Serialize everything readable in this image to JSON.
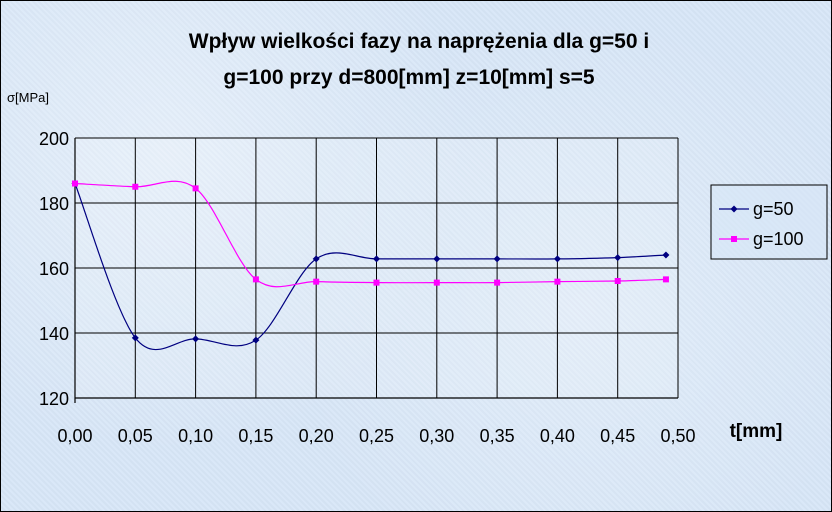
{
  "chart_data": {
    "type": "line",
    "title_lines": [
      "Wpływ wielkości fazy na naprężenia dla g=50 i",
      "g=100 przy d=800[mm] z=10[mm] s=5"
    ],
    "xlabel": "t[mm]",
    "ylabel": "σ[MPa]",
    "x_tick_labels": [
      "0,00",
      "0,05",
      "0,10",
      "0,15",
      "0,20",
      "0,25",
      "0,30",
      "0,35",
      "0,40",
      "0,45",
      "0,50"
    ],
    "y_tick_labels": [
      "120",
      "140",
      "160",
      "180",
      "200"
    ],
    "xlim": [
      0,
      0.5
    ],
    "ylim": [
      120,
      200
    ],
    "x_ticks": [
      0,
      0.05,
      0.1,
      0.15,
      0.2,
      0.25,
      0.3,
      0.35,
      0.4,
      0.45,
      0.5
    ],
    "y_ticks": [
      120,
      140,
      160,
      180,
      200
    ],
    "grid": true,
    "legend_position": "right",
    "series": [
      {
        "name": "g=50",
        "color": "#000080",
        "marker": "diamond",
        "x": [
          0,
          0.05,
          0.1,
          0.15,
          0.2,
          0.25,
          0.3,
          0.35,
          0.4,
          0.45,
          0.49
        ],
        "y": [
          186,
          138.5,
          138.2,
          137.8,
          162.8,
          162.8,
          162.8,
          162.8,
          162.8,
          163.2,
          164
        ]
      },
      {
        "name": "g=100",
        "color": "#ff00ff",
        "marker": "square",
        "x": [
          0,
          0.05,
          0.1,
          0.15,
          0.2,
          0.25,
          0.3,
          0.35,
          0.4,
          0.45,
          0.49
        ],
        "y": [
          186,
          185,
          184.5,
          156.5,
          155.8,
          155.5,
          155.5,
          155.5,
          155.8,
          156,
          156.5
        ]
      }
    ]
  }
}
